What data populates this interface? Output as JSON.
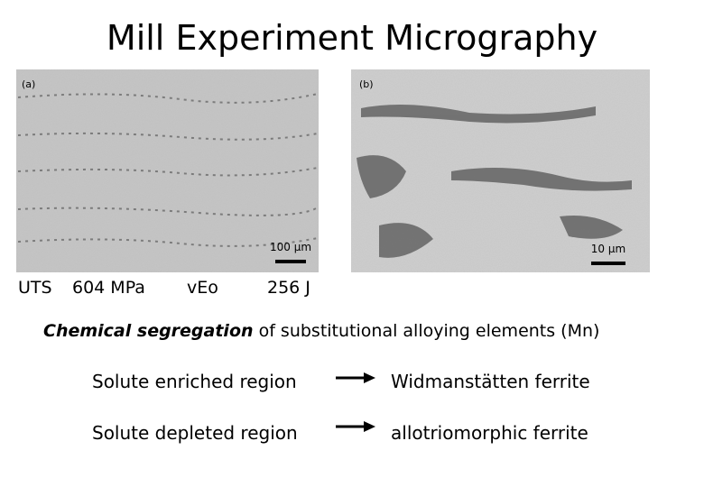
{
  "title": "Mill Experiment Micrography",
  "micrographs": [
    {
      "label": "(a)",
      "scale": "100 μm"
    },
    {
      "label": "(b)",
      "scale": "10 μm"
    }
  ],
  "properties": {
    "uts_label": "UTS",
    "uts_value": "604 MPa",
    "impact_label": "vEo",
    "impact_value": "256 J"
  },
  "statement": {
    "emphasis": "Chemical segregation",
    "rest": "of substitutional alloying elements (Mn)"
  },
  "relations": [
    {
      "from": "Solute enriched region",
      "to": "Widmanstätten ferrite"
    },
    {
      "from": "Solute depleted region",
      "to": "allotriomorphic ferrite"
    }
  ]
}
